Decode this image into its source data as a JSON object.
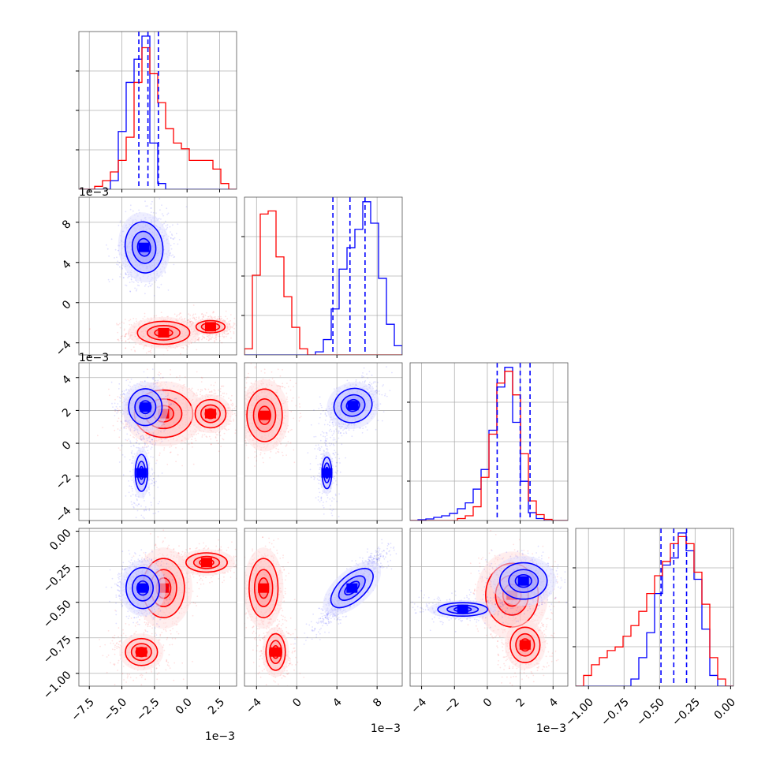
{
  "figure": {
    "type": "corner-plot"
  },
  "chart_data": {
    "type": "corner",
    "series": [
      {
        "color": "#0000ff"
      },
      {
        "color": "#ff0000"
      }
    ],
    "parameters": [
      {
        "range": [
          -8.3,
          3.8
        ],
        "ticks": [
          -7.5,
          -5.0,
          -2.5,
          0.0,
          2.5
        ],
        "tick_labels": [
          "−7.5",
          "−5.0",
          "−2.5",
          "0.0",
          "2.5"
        ],
        "offset_text": "1e−3"
      },
      {
        "range": [
          -5.2,
          10.5
        ],
        "ticks": [
          -4,
          0,
          4,
          8
        ],
        "tick_labels": [
          "−4",
          "0",
          "4",
          "8"
        ],
        "offset_text": "1e−3"
      },
      {
        "range": [
          -4.7,
          4.9
        ],
        "ticks": [
          -4,
          -2,
          0,
          2,
          4
        ],
        "tick_labels": [
          "−4",
          "−2",
          "0",
          "2",
          "4"
        ],
        "offset_text": "1e−3"
      },
      {
        "range": [
          -1.09,
          0.02
        ],
        "ticks": [
          -1.0,
          -0.75,
          -0.5,
          -0.25,
          0.0
        ],
        "tick_labels": [
          "−1.00",
          "−0.75",
          "−0.50",
          "−0.25",
          "0.00"
        ],
        "offset_text": ""
      }
    ],
    "histograms": [
      {
        "bins": 20,
        "blue": {
          "counts": [
            0,
            0,
            0,
            0,
            0.3,
            2.0,
            3.7,
            4.5,
            5.3,
            1.6,
            0.2,
            0,
            0,
            0,
            0,
            0,
            0,
            0,
            0,
            0
          ]
        },
        "red": {
          "counts": [
            0,
            0,
            0.1,
            0.3,
            0.6,
            1.0,
            1.8,
            3.7,
            4.9,
            4.0,
            3.0,
            2.1,
            1.6,
            1.4,
            1.0,
            1.0,
            1.0,
            0.7,
            0.2,
            0
          ]
        },
        "quantiles": [
          -3.7,
          -3.0,
          -2.2
        ]
      },
      {
        "bins": 20,
        "blue": {
          "counts": [
            0,
            0,
            0,
            0,
            0,
            0,
            0,
            0,
            0,
            0.1,
            0.5,
            1.5,
            2.8,
            3.5,
            4.1,
            5.0,
            4.3,
            2.5,
            1.0,
            0.3
          ]
        },
        "red": {
          "counts": [
            0.2,
            2.6,
            4.6,
            4.7,
            3.2,
            1.9,
            0.9,
            0.2,
            0,
            0,
            0,
            0,
            0,
            0,
            0,
            0,
            0,
            0,
            0,
            0
          ]
        },
        "quantiles": [
          3.6,
          5.3,
          6.8
        ]
      },
      {
        "bins": 20,
        "blue": {
          "counts": [
            0,
            0.02,
            0.04,
            0.08,
            0.12,
            0.18,
            0.3,
            0.45,
            0.8,
            1.3,
            2.3,
            3.4,
            3.9,
            2.5,
            1.0,
            0.2,
            0.05,
            0,
            0,
            0
          ]
        },
        "red": {
          "counts": [
            0,
            0,
            0,
            0,
            0,
            0,
            0.05,
            0.12,
            0.35,
            1.1,
            2.2,
            3.5,
            3.8,
            3.2,
            1.7,
            0.5,
            0.15,
            0.03,
            0,
            0
          ]
        },
        "quantiles": [
          0.6,
          2.0,
          2.6
        ]
      },
      {
        "bins": 20,
        "blue": {
          "counts": [
            0,
            0,
            0,
            0,
            0,
            0,
            0,
            0.2,
            0.8,
            1.5,
            2.6,
            3.4,
            3.6,
            4.3,
            3.8,
            3.0,
            1.6,
            0.3,
            0,
            0
          ]
        },
        "red": {
          "counts": [
            0,
            0.3,
            0.6,
            0.8,
            1.0,
            1.1,
            1.4,
            1.7,
            2.1,
            2.6,
            3.1,
            3.5,
            4.0,
            4.2,
            4.0,
            3.2,
            2.3,
            0.8,
            0.2,
            0
          ]
        },
        "quantiles": [
          -0.49,
          -0.4,
          -0.31
        ]
      }
    ],
    "clouds": [
      {
        "row": 1,
        "col": 0,
        "blue": {
          "peaks": [
            {
              "x": -3.3,
              "y": 5.5,
              "sx": 0.9,
              "sy": 1.6,
              "rho": 0.1,
              "weight": 1.0
            }
          ]
        },
        "red": {
          "peaks": [
            {
              "x": -1.8,
              "y": -3.0,
              "sx": 1.4,
              "sy": 0.8,
              "rho": 0.0,
              "weight": 0.8
            },
            {
              "x": 1.8,
              "y": -2.4,
              "sx": 1.1,
              "sy": 0.6,
              "rho": 0.0,
              "weight": 0.4
            }
          ]
        }
      },
      {
        "row": 2,
        "col": 0,
        "blue": {
          "peaks": [
            {
              "x": -3.2,
              "y": 2.2,
              "sx": 0.8,
              "sy": 0.7,
              "rho": 0.0,
              "weight": 1.0
            },
            {
              "x": -3.5,
              "y": -1.8,
              "sx": 0.6,
              "sy": 1.4,
              "rho": 0.0,
              "weight": 0.25
            }
          ]
        },
        "red": {
          "peaks": [
            {
              "x": -1.8,
              "y": 1.8,
              "sx": 1.4,
              "sy": 0.9,
              "rho": 0.0,
              "weight": 1.0
            },
            {
              "x": 1.8,
              "y": 1.8,
              "sx": 1.1,
              "sy": 0.8,
              "rho": 0.0,
              "weight": 0.45
            }
          ]
        }
      },
      {
        "row": 2,
        "col": 1,
        "blue": {
          "peaks": [
            {
              "x": 5.6,
              "y": 2.3,
              "sx": 1.2,
              "sy": 0.7,
              "rho": 0.4,
              "weight": 1.0
            },
            {
              "x": 3.0,
              "y": -1.8,
              "sx": 0.6,
              "sy": 1.2,
              "rho": 0.0,
              "weight": 0.25
            }
          ]
        },
        "red": {
          "peaks": [
            {
              "x": -3.2,
              "y": 1.7,
              "sx": 1.1,
              "sy": 1.0,
              "rho": 0.0,
              "weight": 1.0
            }
          ]
        }
      },
      {
        "row": 3,
        "col": 0,
        "blue": {
          "peaks": [
            {
              "x": -3.4,
              "y": -0.4,
              "sx": 0.8,
              "sy": 0.09,
              "rho": 0.0,
              "weight": 1.0
            }
          ]
        },
        "red": {
          "peaks": [
            {
              "x": -1.8,
              "y": -0.4,
              "sx": 1.0,
              "sy": 0.13,
              "rho": 0.0,
              "weight": 1.0
            },
            {
              "x": 1.5,
              "y": -0.22,
              "sx": 1.4,
              "sy": 0.06,
              "rho": 0.0,
              "weight": 0.5
            },
            {
              "x": -3.5,
              "y": -0.85,
              "sx": 1.3,
              "sy": 0.1,
              "rho": 0.0,
              "weight": 0.35
            }
          ]
        }
      },
      {
        "row": 3,
        "col": 1,
        "blue": {
          "peaks": [
            {
              "x": 5.5,
              "y": -0.4,
              "sx": 1.6,
              "sy": 0.13,
              "rho": 0.9,
              "weight": 1.0
            }
          ]
        },
        "red": {
          "peaks": [
            {
              "x": -3.3,
              "y": -0.4,
              "sx": 0.9,
              "sy": 0.13,
              "rho": 0.0,
              "weight": 1.0
            },
            {
              "x": -2.1,
              "y": -0.85,
              "sx": 0.9,
              "sy": 0.12,
              "rho": 0.0,
              "weight": 0.45
            }
          ]
        }
      },
      {
        "row": 3,
        "col": 2,
        "blue": {
          "peaks": [
            {
              "x": 2.2,
              "y": -0.35,
              "sx": 0.9,
              "sy": 0.08,
              "rho": 0.0,
              "weight": 1.0
            },
            {
              "x": -1.5,
              "y": -0.55,
              "sx": 1.6,
              "sy": 0.05,
              "rho": 0.0,
              "weight": 0.35
            }
          ]
        },
        "red": {
          "peaks": [
            {
              "x": 1.5,
              "y": -0.45,
              "sx": 1.0,
              "sy": 0.14,
              "rho": 0.0,
              "weight": 1.0
            },
            {
              "x": 2.3,
              "y": -0.8,
              "sx": 0.8,
              "sy": 0.11,
              "rho": 0.0,
              "weight": 0.5
            }
          ]
        }
      }
    ]
  }
}
